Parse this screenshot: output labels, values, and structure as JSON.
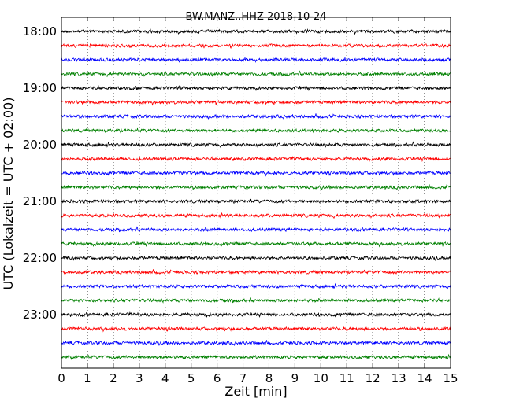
{
  "chart_data": {
    "type": "line",
    "title": "BW.MANZ..HHZ 2018-10-24",
    "xlabel": "Zeit  [min]",
    "ylabel": "UTC (Lokalzeit = UTC + 02:00)",
    "xlim": [
      0,
      15
    ],
    "x_ticks": [
      "0",
      "1",
      "2",
      "3",
      "4",
      "5",
      "6",
      "7",
      "8",
      "9",
      "10",
      "11",
      "12",
      "13",
      "14",
      "15"
    ],
    "y_ticks": [
      "18:00",
      "19:00",
      "20:00",
      "21:00",
      "22:00",
      "23:00"
    ],
    "grid": "vertical dotted lines at each minute",
    "trace_interval_minutes": 15,
    "trace_start_times": [
      "18:00",
      "18:15",
      "18:30",
      "18:45",
      "19:00",
      "19:15",
      "19:30",
      "19:45",
      "20:00",
      "20:15",
      "20:30",
      "20:45",
      "21:00",
      "21:15",
      "21:30",
      "21:45",
      "22:00",
      "22:15",
      "22:30",
      "22:45",
      "23:00",
      "23:15",
      "23:30",
      "23:45"
    ],
    "trace_color_cycle": [
      "#000000",
      "#ff0000",
      "#0000ff",
      "#008000"
    ]
  }
}
